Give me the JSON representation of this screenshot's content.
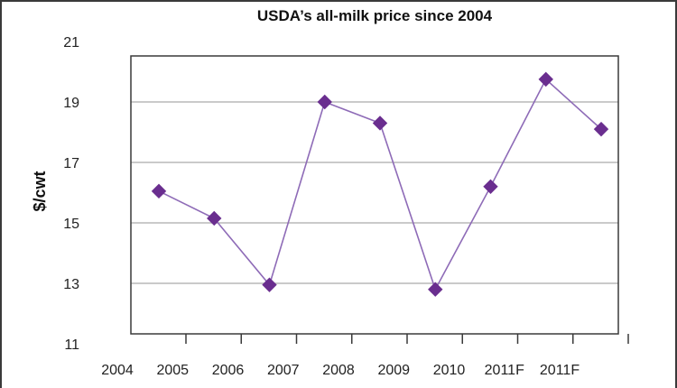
{
  "chart_data": {
    "type": "line",
    "title": "USDA’s all-milk price since 2004",
    "xlabel": "",
    "ylabel": "$/cwt",
    "categories": [
      "2004",
      "2005",
      "2006",
      "2007",
      "2008",
      "2009",
      "2010",
      "2011F",
      "2011F"
    ],
    "series": [
      {
        "name": "",
        "values": [
          16.05,
          15.15,
          12.95,
          19.0,
          18.3,
          12.8,
          16.2,
          19.75,
          18.1
        ]
      }
    ],
    "ylim": [
      11,
      21
    ],
    "yticks": [
      "21",
      "19",
      "17",
      "15",
      "13",
      "11"
    ],
    "ytick_values": [
      21,
      19,
      17,
      15,
      13,
      11
    ],
    "grid": true,
    "legend": "none",
    "colors": {
      "line": "#8e6bb7",
      "marker": "#6a2e8f",
      "grid": "#b8b8b8",
      "frame": "#3a3a3a"
    }
  }
}
